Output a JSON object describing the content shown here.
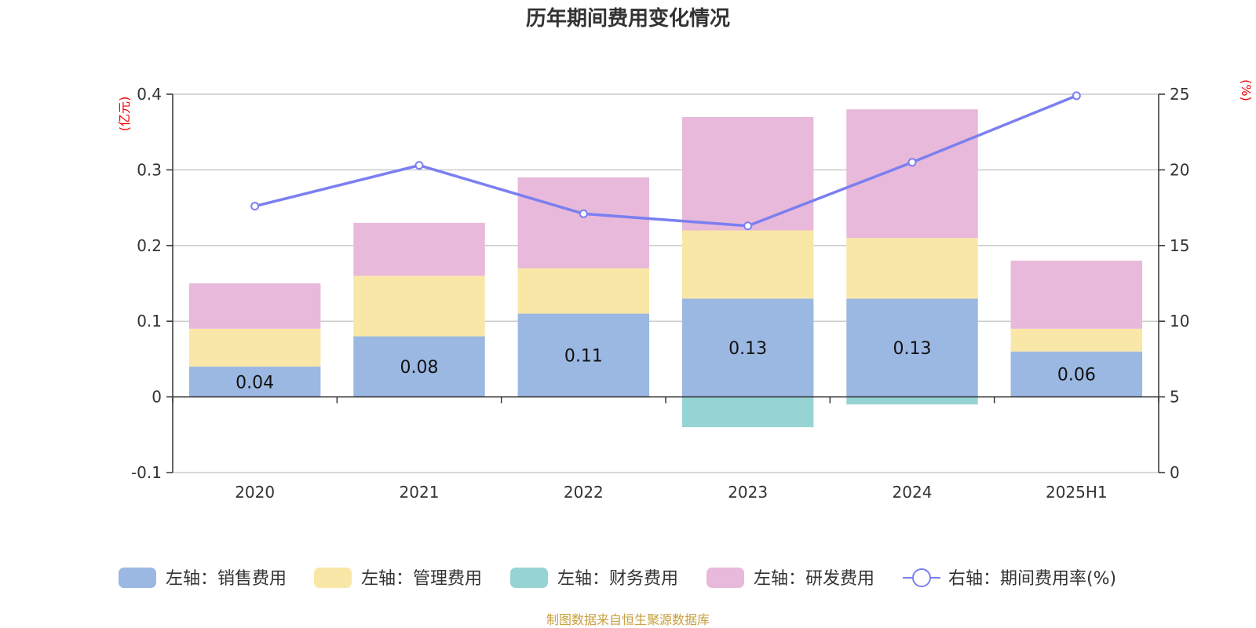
{
  "chart_data": {
    "type": "bar",
    "stacked": true,
    "title": "历年期间费用变化情况",
    "categories": [
      "2020",
      "2021",
      "2022",
      "2023",
      "2024",
      "2025H1"
    ],
    "left_axis": {
      "unit": "(亿元)",
      "ylim": [
        -0.1,
        0.4
      ],
      "ticks": [
        -0.1,
        0,
        0.1,
        0.2,
        0.3,
        0.4
      ],
      "tick_labels": [
        "-0.1",
        "0",
        "0.1",
        "0.2",
        "0.3",
        "0.4"
      ]
    },
    "right_axis": {
      "unit": "(%)",
      "ylim": [
        0,
        25
      ],
      "ticks": [
        0,
        5,
        10,
        15,
        20,
        25
      ],
      "tick_labels": [
        "0",
        "5",
        "10",
        "15",
        "20",
        "25"
      ]
    },
    "series": [
      {
        "key": "sales",
        "name": "左轴：销售费用",
        "axis": "left",
        "color": "#9bb8e2",
        "values": [
          0.04,
          0.08,
          0.11,
          0.13,
          0.13,
          0.06
        ],
        "data_labels": [
          "0.04",
          "0.08",
          "0.11",
          "0.13",
          "0.13",
          "0.06"
        ]
      },
      {
        "key": "admin",
        "name": "左轴：管理费用",
        "axis": "left",
        "color": "#f9e7a7",
        "values": [
          0.05,
          0.08,
          0.06,
          0.09,
          0.08,
          0.03
        ]
      },
      {
        "key": "finance",
        "name": "左轴：财务费用",
        "axis": "left",
        "color": "#96d4d4",
        "values": [
          0.0,
          0.0,
          0.0,
          -0.04,
          -0.01,
          0.0
        ]
      },
      {
        "key": "rd",
        "name": "左轴：研发费用",
        "axis": "left",
        "color": "#e8b9da",
        "values": [
          0.06,
          0.07,
          0.12,
          0.15,
          0.17,
          0.09
        ]
      },
      {
        "key": "rate",
        "name": "右轴：期间费用率(%)",
        "axis": "right",
        "type": "line",
        "color": "#7b7ff0",
        "values": [
          17.6,
          20.3,
          17.1,
          16.3,
          20.5,
          24.9
        ]
      }
    ],
    "grid": true,
    "legend_position": "bottom",
    "source": "制图数据来自恒生聚源数据库"
  }
}
